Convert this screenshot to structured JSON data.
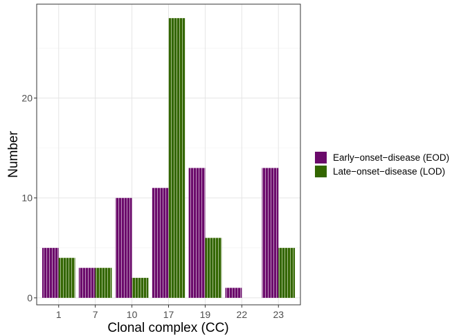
{
  "chart_data": {
    "type": "bar",
    "categories": [
      "1",
      "7",
      "10",
      "17",
      "19",
      "22",
      "23"
    ],
    "series": [
      {
        "name": "Early−onset−disease (EOD)",
        "color": "#6b0a6b",
        "values": [
          5,
          3,
          10,
          11,
          13,
          1,
          13
        ]
      },
      {
        "name": "Late−onset−disease (LOD)",
        "color": "#336600",
        "values": [
          4,
          3,
          2,
          28,
          6,
          0,
          5
        ]
      }
    ],
    "xlabel": "Clonal complex (CC)",
    "ylabel": "Number",
    "ylim": [
      -0.7,
      29.4
    ],
    "yticks": [
      "0",
      "10",
      "20"
    ],
    "grid": true,
    "legend_position": "right",
    "bar_pattern": "vertical stripes"
  }
}
